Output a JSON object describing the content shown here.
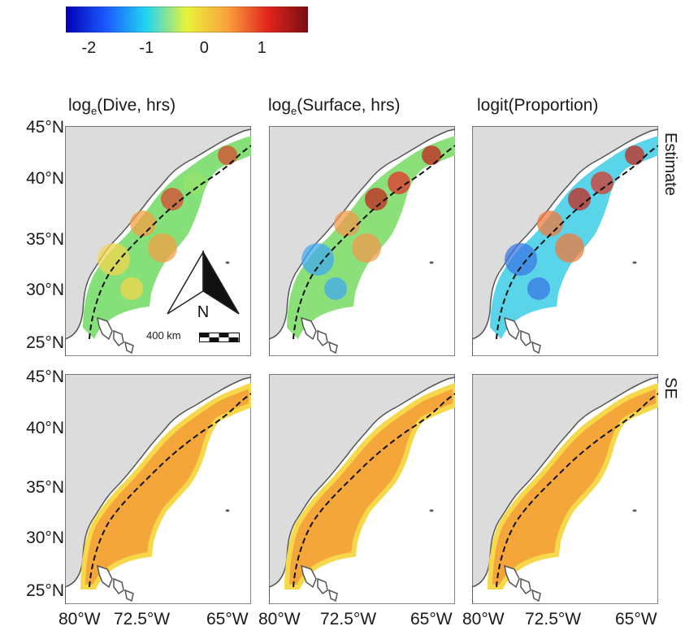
{
  "colorbar": {
    "ticks": [
      "-2",
      "-1",
      "0",
      "1"
    ],
    "tick_values": [
      -2,
      -1,
      0,
      1
    ],
    "range": [
      -2.4,
      1.8
    ],
    "colors": [
      "#0000b5",
      "#1a5bff",
      "#22d6ef",
      "#eaf23a",
      "#f8a23c",
      "#e2261c",
      "#7a0c12"
    ]
  },
  "columns": [
    {
      "prefix": "log",
      "sub": "e",
      "label": "(Dive, hrs)"
    },
    {
      "prefix": "log",
      "sub": "e",
      "label": "(Surface, hrs)"
    },
    {
      "prefix": "logit",
      "sub": "",
      "label": "(Proportion)"
    }
  ],
  "rows": [
    "Estimate",
    "SE"
  ],
  "lat_ticks": [
    "45°N",
    "40°N",
    "35°N",
    "30°N",
    "25°N"
  ],
  "lon_ticks": [
    "80°W",
    "72.5°W",
    "65°W"
  ],
  "north_arrow_label": "N",
  "scale_label": "400 km",
  "colors": {
    "land": "#dcdcdc",
    "coast": "#555555",
    "se_fill": "#f4a63a",
    "se_edge": "#f6d84a"
  }
}
